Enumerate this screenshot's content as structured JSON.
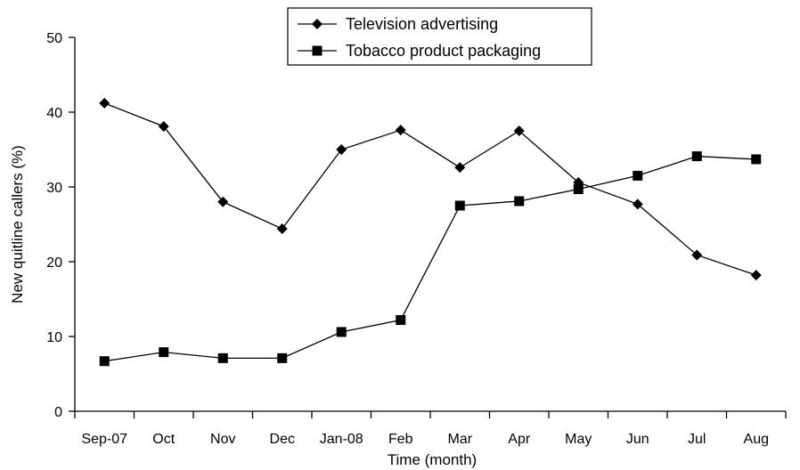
{
  "chart_data": {
    "type": "line",
    "title": "",
    "xlabel": "Time (month)",
    "ylabel": "New quitline callers (%)",
    "categories": [
      "Sep-07",
      "Oct",
      "Nov",
      "Dec",
      "Jan-08",
      "Feb",
      "Mar",
      "Apr",
      "May",
      "Jun",
      "Jul",
      "Aug"
    ],
    "ylim": [
      0,
      50
    ],
    "yticks": [
      "0",
      "10",
      "20",
      "30",
      "40",
      "50"
    ],
    "grid": false,
    "legend_position": "top-center",
    "series": [
      {
        "name": "Television advertising",
        "marker": "diamond",
        "color": "#000000",
        "values": [
          41.2,
          38.1,
          28.0,
          24.4,
          35.0,
          37.6,
          32.6,
          37.5,
          30.6,
          27.7,
          20.9,
          18.2
        ]
      },
      {
        "name": "Tobacco product packaging",
        "marker": "square",
        "color": "#000000",
        "values": [
          6.7,
          7.9,
          7.1,
          7.1,
          10.6,
          12.2,
          27.5,
          28.1,
          29.7,
          31.5,
          34.1,
          33.7
        ]
      }
    ]
  }
}
